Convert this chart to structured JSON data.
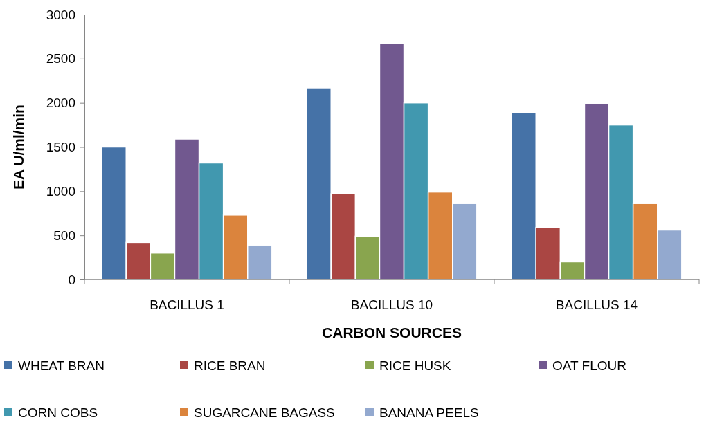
{
  "chart_data": {
    "type": "bar",
    "xlabel": "CARBON  SOURCES",
    "ylabel": "EA  U/ml/min",
    "categories": [
      "BACILLUS  1",
      "BACILLUS  10",
      "BACILLUS  14"
    ],
    "series": [
      {
        "name": "WHEAT  BRAN",
        "color": "#4572a7",
        "values": [
          1500,
          2170,
          1890
        ]
      },
      {
        "name": "RICE  BRAN",
        "color": "#aa4643",
        "values": [
          420,
          970,
          590
        ]
      },
      {
        "name": "RICE  HUSK",
        "color": "#89a54e",
        "values": [
          300,
          490,
          200
        ]
      },
      {
        "name": "OAT  FLOUR",
        "color": "#71588f",
        "values": [
          1590,
          2670,
          1990
        ]
      },
      {
        "name": "CORN  COBS",
        "color": "#4198af",
        "values": [
          1320,
          2000,
          1750
        ]
      },
      {
        "name": "SUGARCANE  BAGASS",
        "color": "#db843d",
        "values": [
          730,
          990,
          860
        ]
      },
      {
        "name": "BANANA  PEELS",
        "color": "#93a9cf",
        "values": [
          390,
          860,
          560
        ]
      }
    ],
    "ylim": [
      0,
      3000
    ],
    "yticks": [
      0,
      500,
      1000,
      1500,
      2000,
      2500,
      3000
    ],
    "legend": "bottom"
  }
}
